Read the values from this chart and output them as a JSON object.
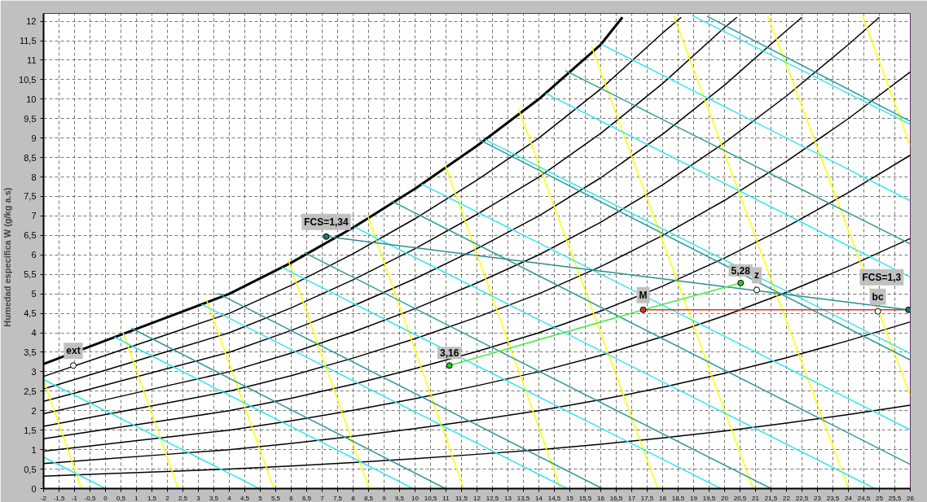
{
  "chart_data": {
    "type": "line",
    "ylabel": "Humedad específica   W    (g/kg a.s)",
    "xlim": [
      -2,
      26
    ],
    "ylim": [
      0,
      12.2
    ],
    "xticks": [
      -2,
      {
        "value": -1.5,
        "label": "-1,5"
      },
      -1,
      {
        "value": -0.5,
        "label": "-0,5"
      },
      0,
      {
        "value": 0.5,
        "label": "0,5"
      },
      1,
      {
        "value": 1.5,
        "label": "1,5"
      },
      2,
      {
        "value": 2.5,
        "label": "2,5"
      },
      3,
      {
        "value": 3.5,
        "label": "3,5"
      },
      4,
      {
        "value": 4.5,
        "label": "4,5"
      },
      5,
      {
        "value": 5.5,
        "label": "5,5"
      },
      6,
      {
        "value": 6.5,
        "label": "6,5"
      },
      7,
      {
        "value": 7.5,
        "label": "7,5"
      },
      8,
      {
        "value": 8.5,
        "label": "8,5"
      },
      9,
      {
        "value": 9.5,
        "label": "9,5"
      },
      10,
      {
        "value": 10.5,
        "label": "10,5"
      },
      11,
      {
        "value": 11.5,
        "label": "11,5"
      },
      12,
      {
        "value": 12.5,
        "label": "12,5"
      },
      13,
      {
        "value": 13.5,
        "label": "13,5"
      },
      14,
      {
        "value": 14.5,
        "label": "14,5"
      },
      15,
      {
        "value": 15.5,
        "label": "15,5"
      },
      16,
      {
        "value": 16.5,
        "label": "16,5"
      },
      17,
      {
        "value": 17.5,
        "label": "17,5"
      },
      18,
      {
        "value": 18.5,
        "label": "18,5"
      },
      19,
      {
        "value": 19.5,
        "label": "19,5"
      },
      20,
      {
        "value": 20.5,
        "label": "20,5"
      },
      21,
      {
        "value": 21.5,
        "label": "21,5"
      },
      22,
      {
        "value": 22.5,
        "label": "22,5"
      },
      23,
      {
        "value": 23.5,
        "label": "23,5"
      },
      24,
      {
        "value": 24.5,
        "label": "24,5"
      },
      25,
      {
        "value": 25.5,
        "label": "25,5"
      },
      26
    ],
    "yticks": [
      0,
      {
        "value": 0.5,
        "label": "0,5"
      },
      1,
      {
        "value": 1.5,
        "label": "1,5"
      },
      2,
      {
        "value": 2.5,
        "label": "2,5"
      },
      3,
      {
        "value": 3.5,
        "label": "3,5"
      },
      4,
      {
        "value": 4.5,
        "label": "4,5"
      },
      5,
      {
        "value": 5.5,
        "label": "5,5"
      },
      6,
      {
        "value": 6.5,
        "label": "6,5"
      },
      7,
      {
        "value": 7.5,
        "label": "7,5"
      },
      8,
      {
        "value": 8.5,
        "label": "8,5"
      },
      9,
      {
        "value": 9.5,
        "label": "9,5"
      },
      10,
      {
        "value": 10.5,
        "label": "10,5"
      },
      11,
      {
        "value": 11.5,
        "label": "11,5"
      },
      12
    ],
    "grid": true,
    "series": [
      {
        "color": "#000000",
        "x": [
          -2,
          0,
          2,
          4,
          6,
          8,
          10,
          12,
          14,
          16,
          16.7
        ],
        "values": [
          3.2,
          3.8,
          4.4,
          5.0,
          5.8,
          6.7,
          7.7,
          8.8,
          10.0,
          11.4,
          12.1
        ]
      },
      {
        "color": "#000000",
        "x": [
          -2,
          0,
          2,
          4,
          6,
          8,
          10,
          12,
          14,
          16,
          18,
          18.6
        ],
        "values": [
          2.88,
          3.42,
          3.96,
          4.5,
          5.22,
          6.03,
          6.93,
          7.92,
          9.0,
          10.26,
          11.7,
          12.1
        ]
      },
      {
        "color": "#000000",
        "x": [
          -2,
          0,
          2,
          4,
          6,
          8,
          10,
          12,
          14,
          16,
          18,
          20,
          20.4
        ],
        "values": [
          2.56,
          3.04,
          3.52,
          4.0,
          4.64,
          5.36,
          6.16,
          7.04,
          8.0,
          9.12,
          10.4,
          11.84,
          12.1
        ]
      },
      {
        "color": "#000000",
        "x": [
          -2,
          0,
          2,
          4,
          6,
          8,
          10,
          12,
          14,
          16,
          18,
          20,
          22,
          22.5
        ],
        "values": [
          2.24,
          2.66,
          3.08,
          3.5,
          4.06,
          4.69,
          5.39,
          6.16,
          7.0,
          7.98,
          9.1,
          10.36,
          11.76,
          12.1
        ]
      },
      {
        "color": "#000000",
        "x": [
          -2,
          0,
          2,
          4,
          6,
          8,
          10,
          12,
          14,
          16,
          18,
          20,
          22,
          24,
          25.0
        ],
        "values": [
          1.92,
          2.28,
          2.64,
          3.0,
          3.48,
          4.02,
          4.62,
          5.28,
          6.0,
          6.84,
          7.8,
          8.88,
          10.08,
          11.4,
          12.1
        ]
      },
      {
        "color": "#000000",
        "x": [
          -2,
          0,
          2,
          4,
          6,
          8,
          10,
          12,
          14,
          16,
          18,
          20,
          22,
          24,
          26
        ],
        "values": [
          1.6,
          1.9,
          2.2,
          2.5,
          2.9,
          3.35,
          3.85,
          4.4,
          5.0,
          5.7,
          6.5,
          7.4,
          8.4,
          9.5,
          10.7
        ]
      },
      {
        "color": "#000000",
        "x": [
          -2,
          0,
          2,
          4,
          6,
          8,
          10,
          12,
          14,
          16,
          18,
          20,
          22,
          24,
          26
        ],
        "values": [
          1.28,
          1.52,
          1.76,
          2.0,
          2.32,
          2.68,
          3.08,
          3.52,
          4.0,
          4.56,
          5.2,
          5.92,
          6.72,
          7.6,
          8.56
        ]
      },
      {
        "color": "#000000",
        "x": [
          -2,
          0,
          2,
          4,
          6,
          8,
          10,
          12,
          14,
          16,
          18,
          20,
          22,
          24,
          26
        ],
        "values": [
          0.96,
          1.14,
          1.32,
          1.5,
          1.74,
          2.01,
          2.31,
          2.64,
          3.0,
          3.42,
          3.9,
          4.44,
          5.04,
          5.7,
          6.42
        ]
      },
      {
        "color": "#000000",
        "x": [
          -2,
          0,
          2,
          4,
          6,
          8,
          10,
          12,
          14,
          16,
          18,
          20,
          22,
          24,
          26
        ],
        "values": [
          0.64,
          0.76,
          0.88,
          1.0,
          1.16,
          1.34,
          1.54,
          1.76,
          2.0,
          2.28,
          2.6,
          2.96,
          3.36,
          3.8,
          4.28
        ]
      },
      {
        "color": "#000000",
        "x": [
          -2,
          0,
          2,
          4,
          6,
          8,
          10,
          12,
          14,
          16,
          18,
          20,
          22,
          24,
          26
        ],
        "values": [
          0.32,
          0.38,
          0.44,
          0.5,
          0.58,
          0.67,
          0.77,
          0.88,
          1.0,
          1.14,
          1.3,
          1.48,
          1.68,
          1.9,
          2.14
        ]
      },
      {
        "color": "#ffff00",
        "x": [
          -2,
          -0.78
        ],
        "values": [
          2.78,
          0
        ]
      },
      {
        "color": "#ffff00",
        "x": [
          0.57,
          2.35
        ],
        "values": [
          4.0,
          0
        ]
      },
      {
        "color": "#ffff00",
        "x": [
          3.26,
          5.44
        ],
        "values": [
          4.85,
          0
        ]
      },
      {
        "color": "#ffff00",
        "x": [
          5.9,
          8.51
        ],
        "values": [
          5.87,
          0
        ]
      },
      {
        "color": "#ffff00",
        "x": [
          8.46,
          11.57
        ],
        "values": [
          7.03,
          0
        ]
      },
      {
        "color": "#ffff00",
        "x": [
          10.98,
          14.7
        ],
        "values": [
          8.29,
          0
        ]
      },
      {
        "color": "#ffff00",
        "x": [
          13.34,
          17.84
        ],
        "values": [
          9.75,
          0
        ]
      },
      {
        "color": "#ffff00",
        "x": [
          15.7,
          20.92
        ],
        "values": [
          11.36,
          0
        ]
      },
      {
        "color": "#ffff00",
        "x": [
          18.36,
          24.0
        ],
        "values": [
          12.13,
          0
        ]
      },
      {
        "color": "#ffff00",
        "x": [
          21.4,
          26
        ],
        "values": [
          12.13,
          2.39
        ]
      },
      {
        "color": "#ffff00",
        "x": [
          24.46,
          26
        ],
        "values": [
          12.13,
          8.8
        ]
      },
      {
        "color": "#33e6f0",
        "x": [
          -2,
          0
        ],
        "values": [
          0.81,
          0
        ]
      },
      {
        "color": "#33e6f0",
        "x": [
          -2,
          4.97
        ],
        "values": [
          2.8,
          0
        ]
      },
      {
        "color": "#33e6f0",
        "x": [
          0.29,
          9.94
        ],
        "values": [
          3.89,
          0
        ]
      },
      {
        "color": "#33e6f0",
        "x": [
          3.11,
          14.91
        ],
        "values": [
          4.73,
          0
        ]
      },
      {
        "color": "#33e6f0",
        "x": [
          5.7,
          19.88
        ],
        "values": [
          5.68,
          0
        ]
      },
      {
        "color": "#33e6f0",
        "x": [
          8.04,
          24.85
        ],
        "values": [
          6.72,
          0
        ]
      },
      {
        "color": "#33e6f0",
        "x": [
          10.21,
          26
        ],
        "values": [
          7.82,
          1.51
        ]
      },
      {
        "color": "#33e6f0",
        "x": [
          12.27,
          26
        ],
        "values": [
          8.96,
          3.47
        ]
      },
      {
        "color": "#33e6f0",
        "x": [
          14.22,
          26
        ],
        "values": [
          10.15,
          5.43
        ]
      },
      {
        "color": "#33e6f0",
        "x": [
          16.02,
          26
        ],
        "values": [
          11.41,
          7.39
        ]
      },
      {
        "color": "#33e6f0",
        "x": [
          18.94,
          26
        ],
        "values": [
          12.15,
          9.35
        ]
      },
      {
        "color": "#2e9a96",
        "x": [
          0.83,
          10.98
        ],
        "values": [
          4.12,
          0
        ]
      },
      {
        "color": "#2e9a96",
        "x": [
          3.63,
          16.05
        ],
        "values": [
          5.01,
          0
        ]
      },
      {
        "color": "#2e9a96",
        "x": [
          6.42,
          21.5
        ],
        "values": [
          6.06,
          0
        ]
      },
      {
        "color": "#2e9a96",
        "x": [
          9.25,
          26
        ],
        "values": [
          7.38,
          0.62
        ]
      },
      {
        "color": "#2e9a96",
        "x": [
          12.07,
          26
        ],
        "values": [
          8.96,
          3.3
        ]
      },
      {
        "color": "#2e9a96",
        "x": [
          14.86,
          26
        ],
        "values": [
          10.73,
          6.28
        ]
      },
      {
        "color": "#2e9a96",
        "x": [
          19.43,
          26
        ],
        "values": [
          12.13,
          9.43
        ]
      },
      {
        "color": "#2a8f8c",
        "x": [
          7.13,
          25.94
        ],
        "values": [
          6.47,
          4.59
        ]
      },
      {
        "color": "#44ee44",
        "x": [
          11.11,
          17.37,
          20.52
        ],
        "values": [
          3.16,
          4.59,
          5.28
        ]
      },
      {
        "color": "#dd3322",
        "x": [
          17.37,
          25.94
        ],
        "values": [
          4.59,
          4.59
        ]
      },
      {
        "type": "scatter",
        "marker": "circle",
        "x": [
          -1.04,
          7.13,
          11.11,
          17.37,
          20.52,
          21.04,
          24.95,
          25.94
        ],
        "values": [
          3.16,
          6.47,
          3.16,
          4.59,
          5.28,
          5.1,
          4.55,
          4.59
        ],
        "colors": [
          "#ffffff",
          "#1a7a6a",
          "#22cc22",
          "#dd3322",
          "#22cc22",
          "#ffffff",
          "#ffffff",
          "#1a7a6a"
        ]
      }
    ],
    "annotations": [
      {
        "text": "ext",
        "x": -1.04,
        "y": 3.16
      },
      {
        "text": "FCS=1,34",
        "x": 7.13,
        "y": 6.47
      },
      {
        "text": "3,16",
        "x": 11.11,
        "y": 3.16
      },
      {
        "text": "M",
        "x": 17.37,
        "y": 4.59
      },
      {
        "text": "5,28",
        "x": 20.52,
        "y": 5.28
      },
      {
        "text": "z",
        "x": 21.04,
        "y": 5.1
      },
      {
        "text": "bc",
        "x": 24.95,
        "y": 4.55
      },
      {
        "text": "FCS=1,3",
        "x": 25.94,
        "y": 4.59
      }
    ]
  }
}
